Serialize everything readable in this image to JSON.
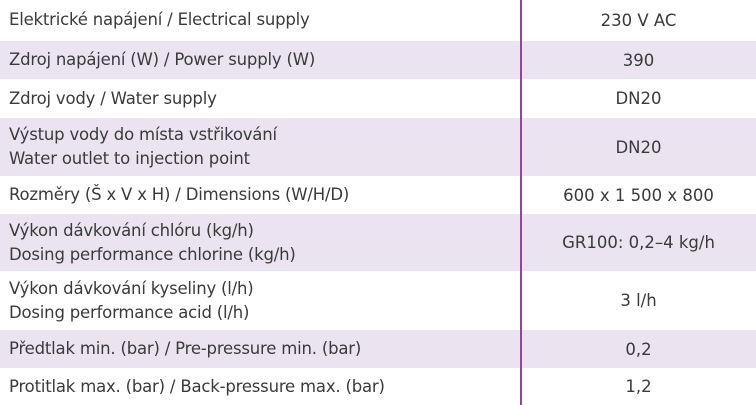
{
  "table": {
    "rows": [
      {
        "label": [
          "Elektrické napájení / Electrical supply"
        ],
        "value": "230 V AC"
      },
      {
        "label": [
          "Zdroj napájení (W) / Power supply (W)"
        ],
        "value": "390"
      },
      {
        "label": [
          "Zdroj vody / Water supply"
        ],
        "value": "DN20"
      },
      {
        "label": [
          "Výstup vody do místa vstřikování",
          "Water outlet to injection point"
        ],
        "value": "DN20"
      },
      {
        "label": [
          "Rozměry (Š x V x H) / Dimensions (W/H/D)"
        ],
        "value": "600 x 1 500 x 800"
      },
      {
        "label": [
          "Výkon dávkování chlóru (kg/h)",
          "Dosing performance chlorine (kg/h)"
        ],
        "value": "GR100: 0,2–4 kg/h"
      },
      {
        "label": [
          "Výkon dávkování kyseliny (l/h)",
          "Dosing performance acid (l/h)"
        ],
        "value": "3 l/h"
      },
      {
        "label": [
          "Předtlak min. (bar) / Pre-pressure min. (bar)"
        ],
        "value": "0,2"
      },
      {
        "label": [
          "Protitlak max. (bar) / Back-pressure max. (bar)"
        ],
        "value": "1,2"
      }
    ]
  }
}
